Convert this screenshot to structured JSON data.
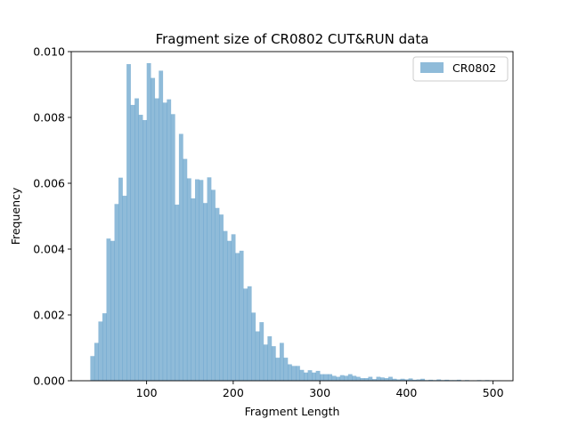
{
  "chart_data": {
    "type": "bar",
    "title": "Fragment size of CR0802 CUT&RUN data",
    "xlabel": "Fragment Length",
    "ylabel": "Frequency",
    "xlim": [
      13,
      523
    ],
    "ylim": [
      0,
      0.01
    ],
    "xticks": [
      100,
      200,
      300,
      400,
      500
    ],
    "xtick_labels": [
      "100",
      "200",
      "300",
      "400",
      "500"
    ],
    "yticks": [
      0,
      0.002,
      0.004,
      0.006,
      0.008,
      0.01
    ],
    "ytick_labels": [
      "0.000",
      "0.002",
      "0.004",
      "0.006",
      "0.008",
      "0.010"
    ],
    "grid": false,
    "legend_position": "upper right",
    "bar_color": "#1f77b4",
    "bar_alpha": 0.5,
    "series": [
      {
        "name": "CR0802",
        "bin_start": 35,
        "bin_width": 4.65,
        "values": [
          0.00075,
          0.00115,
          0.0018,
          0.00205,
          0.00432,
          0.00425,
          0.00537,
          0.00617,
          0.00562,
          0.00962,
          0.00838,
          0.00858,
          0.00808,
          0.00792,
          0.00965,
          0.0092,
          0.00858,
          0.00942,
          0.00845,
          0.00855,
          0.0081,
          0.00535,
          0.0075,
          0.00674,
          0.00615,
          0.00554,
          0.00612,
          0.0061,
          0.0054,
          0.00618,
          0.0058,
          0.00525,
          0.00505,
          0.00455,
          0.00425,
          0.00445,
          0.00388,
          0.00395,
          0.0028,
          0.00287,
          0.00207,
          0.0015,
          0.00178,
          0.0011,
          0.00135,
          0.00105,
          0.0007,
          0.00115,
          0.0007,
          0.0005,
          0.00045,
          0.00045,
          0.00033,
          0.00025,
          0.00032,
          0.00025,
          0.0003,
          0.0002,
          0.0002,
          0.0002,
          0.00015,
          0.00012,
          0.00017,
          0.00015,
          0.0002,
          0.00015,
          0.00012,
          8e-05,
          8e-05,
          0.00012,
          5e-05,
          0.00012,
          0.0001,
          8e-05,
          0.00012,
          6e-05,
          4e-05,
          6e-05,
          4e-05,
          7e-05,
          3e-05,
          4e-05,
          6e-05,
          2e-05,
          3e-05,
          2e-05,
          4e-05,
          2e-05,
          3e-05,
          2e-05,
          2e-05,
          3e-05,
          1e-05,
          2e-05,
          1e-05,
          1e-05,
          2e-05,
          1e-05,
          2e-05,
          1e-05,
          5e-06,
          1e-05
        ]
      }
    ]
  }
}
